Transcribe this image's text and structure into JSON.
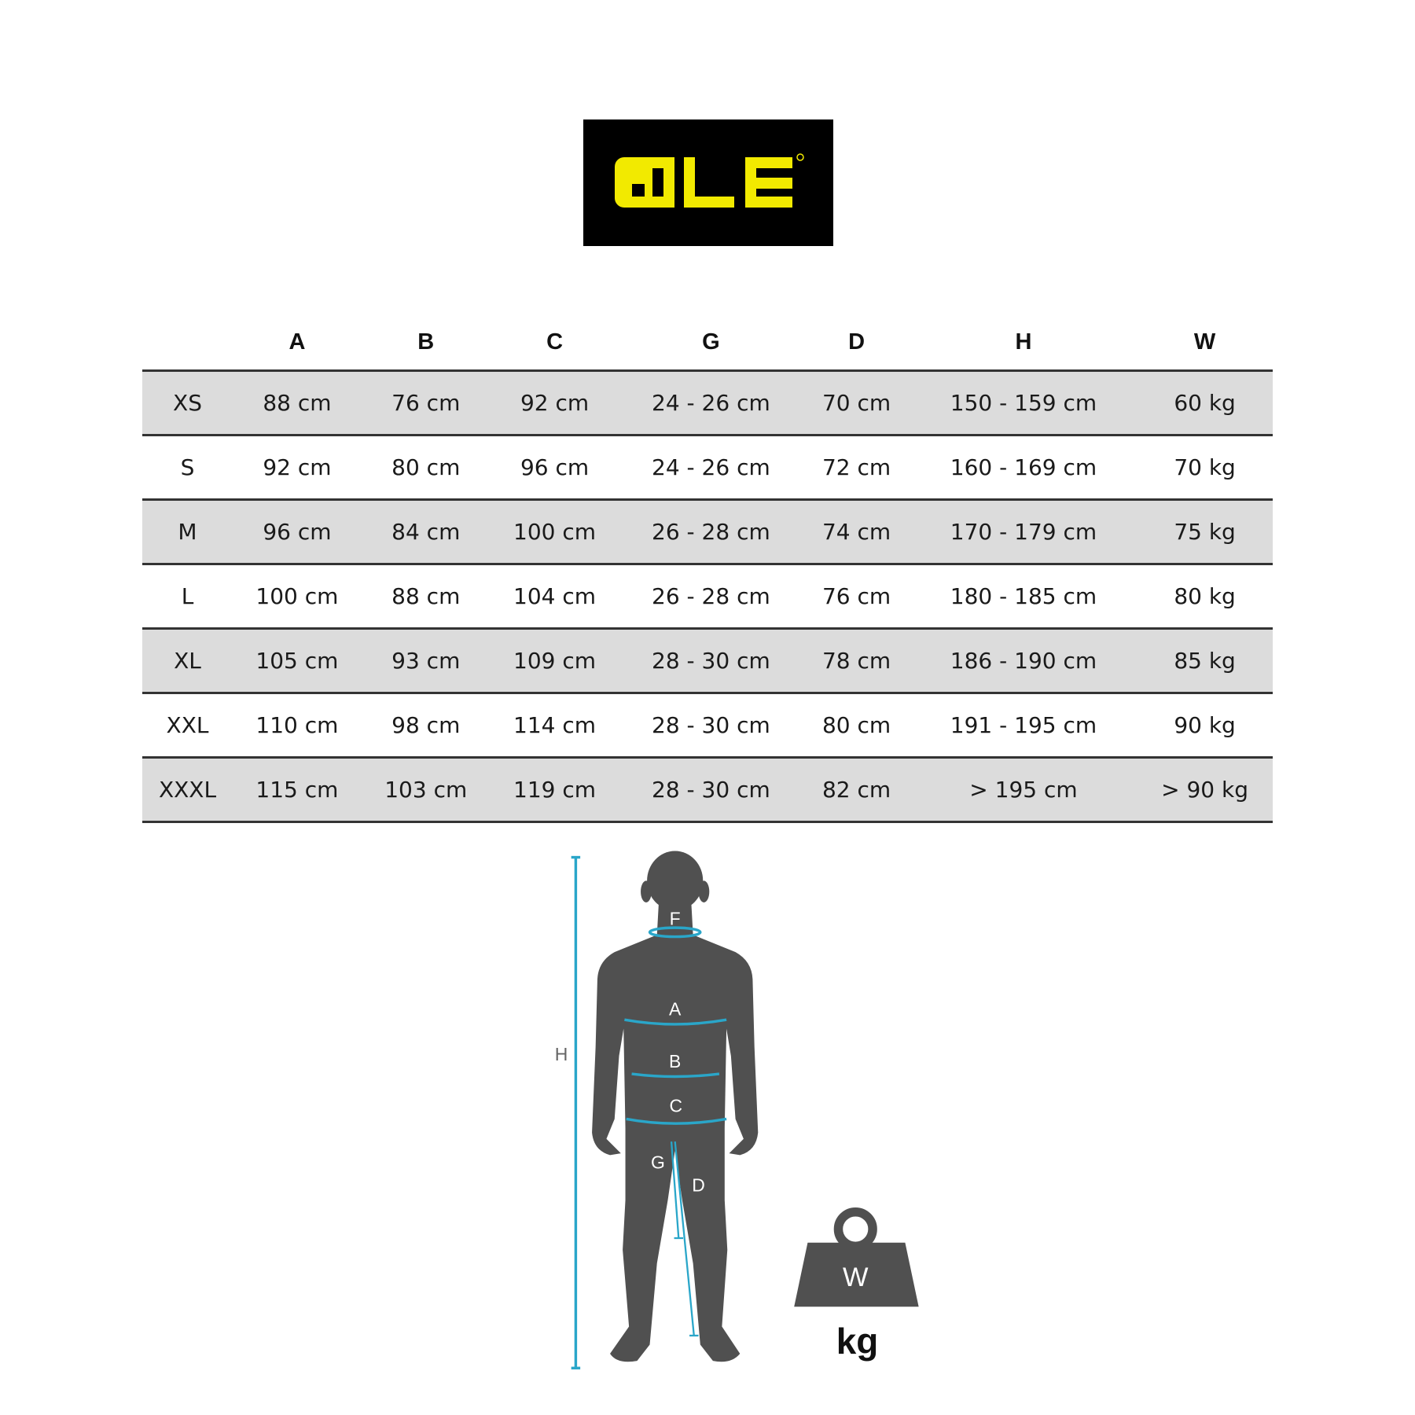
{
  "brand": {
    "logo_text": "ALÉ",
    "logo_bg": "#000000",
    "logo_color": "#f2ea00"
  },
  "table": {
    "headers": [
      "",
      "A",
      "B",
      "C",
      "G",
      "D",
      "H",
      "W"
    ],
    "rows": [
      [
        "XS",
        "88 cm",
        "76 cm",
        "92 cm",
        "24 - 26 cm",
        "70 cm",
        "150 - 159 cm",
        "60 kg"
      ],
      [
        "S",
        "92 cm",
        "80 cm",
        "96 cm",
        "24 - 26 cm",
        "72 cm",
        "160 - 169 cm",
        "70 kg"
      ],
      [
        "M",
        "96 cm",
        "84 cm",
        "100 cm",
        "26 - 28 cm",
        "74 cm",
        "170 - 179 cm",
        "75 kg"
      ],
      [
        "L",
        "100 cm",
        "88 cm",
        "104 cm",
        "26 - 28 cm",
        "76 cm",
        "180 - 185 cm",
        "80 kg"
      ],
      [
        "XL",
        "105 cm",
        "93 cm",
        "109 cm",
        "28 - 30 cm",
        "78 cm",
        "186 - 190 cm",
        "85 kg"
      ],
      [
        "XXL",
        "110 cm",
        "98 cm",
        "114 cm",
        "28 - 30 cm",
        "80 cm",
        "191 - 195 cm",
        "90 kg"
      ],
      [
        "XXXL",
        "115 cm",
        "103 cm",
        "119 cm",
        "28 - 30 cm",
        "82 cm",
        ">  195 cm",
        "> 90 kg"
      ]
    ]
  },
  "figure": {
    "labels": {
      "F": "F",
      "A": "A",
      "B": "B",
      "C": "C",
      "G": "G",
      "D": "D",
      "H": "H"
    },
    "weight_label": "W",
    "weight_unit": "kg",
    "measure_color": "#2aa6c9",
    "body_color": "#505050"
  }
}
